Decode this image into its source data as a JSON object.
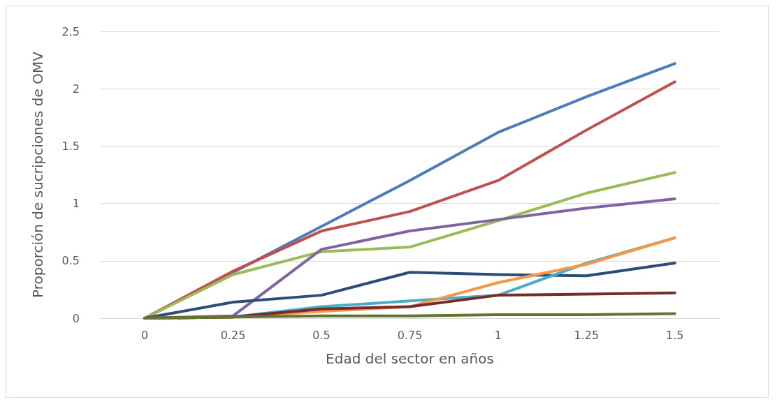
{
  "chart_data": {
    "type": "line",
    "xlabel": "Edad del sector en años",
    "ylabel": "Proporción de sucripciones de OMV",
    "categories": [
      "0",
      "0.25",
      "0.5",
      "0.75",
      "1",
      "1.25",
      "1.5"
    ],
    "ylim": [
      0,
      2.5
    ],
    "yticks": [
      0,
      0.5,
      1,
      1.5,
      2,
      2.5
    ],
    "grid": "y",
    "marker": "none",
    "line_style": "solid",
    "series": [
      {
        "color": "#4a7ebb",
        "values": [
          0,
          0.4,
          0.8,
          1.2,
          1.62,
          1.93,
          2.22
        ]
      },
      {
        "color": "#c0504d",
        "values": [
          0,
          0.41,
          0.76,
          0.93,
          1.2,
          1.64,
          2.06
        ]
      },
      {
        "color": "#9bbb59",
        "values": [
          0,
          0.38,
          0.58,
          0.62,
          0.85,
          1.09,
          1.27
        ]
      },
      {
        "color": "#8064a2",
        "values": [
          0,
          0.02,
          0.6,
          0.76,
          0.86,
          0.96,
          1.04
        ]
      },
      {
        "color": "#2c4d75",
        "values": [
          0,
          0.14,
          0.2,
          0.4,
          0.38,
          0.37,
          0.48
        ]
      },
      {
        "color": "#4bacc6",
        "values": [
          0,
          0.01,
          0.1,
          0.15,
          0.2,
          0.48,
          0.7
        ]
      },
      {
        "color": "#f79646",
        "values": [
          0,
          0.01,
          0.06,
          0.1,
          0.31,
          0.47,
          0.7
        ]
      },
      {
        "color": "#772c2a",
        "values": [
          0,
          0.01,
          0.08,
          0.1,
          0.2,
          0.21,
          0.22
        ]
      },
      {
        "color": "#5f7530",
        "values": [
          0,
          0.01,
          0.02,
          0.02,
          0.03,
          0.03,
          0.04
        ]
      }
    ]
  }
}
